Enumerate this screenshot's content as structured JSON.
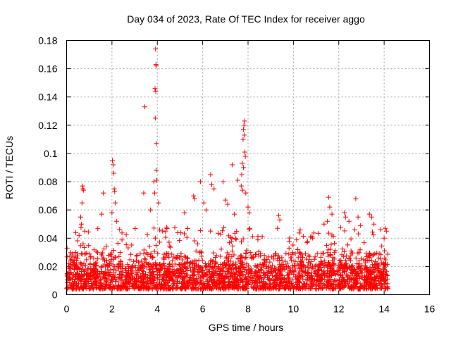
{
  "chart_data": {
    "type": "scatter",
    "title": "Day 034 of 2023, Rate Of TEC Index for receiver aggo",
    "xlabel": "GPS time / hours",
    "ylabel": "ROTI / TECUs",
    "xlim": [
      0,
      16
    ],
    "ylim": [
      0,
      0.18
    ],
    "xticks": [
      0,
      2,
      4,
      6,
      8,
      10,
      12,
      14,
      16
    ],
    "xtick_labels": [
      "0",
      "2",
      "4",
      "6",
      "8",
      "10",
      "12",
      "14",
      "16"
    ],
    "yticks": [
      0,
      0.02,
      0.04,
      0.06,
      0.08,
      0.1,
      0.12,
      0.14,
      0.16,
      0.18
    ],
    "ytick_labels": [
      "0",
      "0.02",
      "0.04",
      "0.06",
      "0.08",
      "0.1",
      "0.12",
      "0.14",
      "0.16",
      "0.18"
    ],
    "grid": true,
    "marker": "+",
    "series": [
      {
        "name": "ROTI",
        "color": "#ff0000",
        "points": [
          [
            3.45,
            0.133
          ],
          [
            3.92,
            0.174
          ],
          [
            3.94,
            0.163
          ],
          [
            3.95,
            0.162
          ],
          [
            3.9,
            0.146
          ],
          [
            3.93,
            0.144
          ],
          [
            3.91,
            0.125
          ],
          [
            3.96,
            0.107
          ],
          [
            3.95,
            0.088
          ],
          [
            3.97,
            0.081
          ],
          [
            3.85,
            0.08
          ],
          [
            3.88,
            0.072
          ],
          [
            3.4,
            0.072
          ],
          [
            4.05,
            0.065
          ],
          [
            3.7,
            0.06
          ],
          [
            7.85,
            0.123
          ],
          [
            7.82,
            0.12
          ],
          [
            7.8,
            0.117
          ],
          [
            7.83,
            0.113
          ],
          [
            7.78,
            0.11
          ],
          [
            7.86,
            0.101
          ],
          [
            7.88,
            0.098
          ],
          [
            7.75,
            0.093
          ],
          [
            7.8,
            0.09
          ],
          [
            7.72,
            0.085
          ],
          [
            7.7,
            0.077
          ],
          [
            7.76,
            0.074
          ],
          [
            7.9,
            0.072
          ],
          [
            7.3,
            0.092
          ],
          [
            7.55,
            0.081
          ],
          [
            2.02,
            0.095
          ],
          [
            2.05,
            0.092
          ],
          [
            2.08,
            0.086
          ],
          [
            2.1,
            0.075
          ],
          [
            2.12,
            0.073
          ],
          [
            2.15,
            0.065
          ],
          [
            2.0,
            0.058
          ],
          [
            1.62,
            0.072
          ],
          [
            1.55,
            0.057
          ],
          [
            2.2,
            0.052
          ],
          [
            0.7,
            0.077
          ],
          [
            0.72,
            0.075
          ],
          [
            0.75,
            0.074
          ],
          [
            0.68,
            0.065
          ],
          [
            0.62,
            0.055
          ],
          [
            0.65,
            0.05
          ],
          [
            0.8,
            0.045
          ],
          [
            0.55,
            0.042
          ],
          [
            5.6,
            0.07
          ],
          [
            5.65,
            0.068
          ],
          [
            5.9,
            0.08
          ],
          [
            6.05,
            0.065
          ],
          [
            6.15,
            0.06
          ],
          [
            6.35,
            0.085
          ],
          [
            6.4,
            0.078
          ],
          [
            6.5,
            0.075
          ],
          [
            6.9,
            0.08
          ],
          [
            7.0,
            0.067
          ],
          [
            7.1,
            0.064
          ],
          [
            7.4,
            0.057
          ],
          [
            8.0,
            0.062
          ],
          [
            8.05,
            0.058
          ],
          [
            5.2,
            0.058
          ],
          [
            9.35,
            0.056
          ],
          [
            9.4,
            0.053
          ],
          [
            9.3,
            0.047
          ],
          [
            11.35,
            0.05
          ],
          [
            11.55,
            0.069
          ],
          [
            11.6,
            0.062
          ],
          [
            11.7,
            0.057
          ],
          [
            11.5,
            0.052
          ],
          [
            12.25,
            0.058
          ],
          [
            12.3,
            0.055
          ],
          [
            12.45,
            0.052
          ],
          [
            12.75,
            0.068
          ],
          [
            12.85,
            0.055
          ],
          [
            12.95,
            0.049
          ],
          [
            12.7,
            0.046
          ],
          [
            13.35,
            0.057
          ],
          [
            13.45,
            0.055
          ],
          [
            13.55,
            0.05
          ],
          [
            14.05,
            0.047
          ],
          [
            14.1,
            0.045
          ],
          [
            14.0,
            0.04
          ]
        ]
      }
    ],
    "dense_band": {
      "note": "Dense field of additional points forming the bulk of the observations",
      "x_range": [
        0.0,
        14.2
      ],
      "y_typical": [
        0.003,
        0.03
      ],
      "y_bursts_max": 0.048
    }
  }
}
